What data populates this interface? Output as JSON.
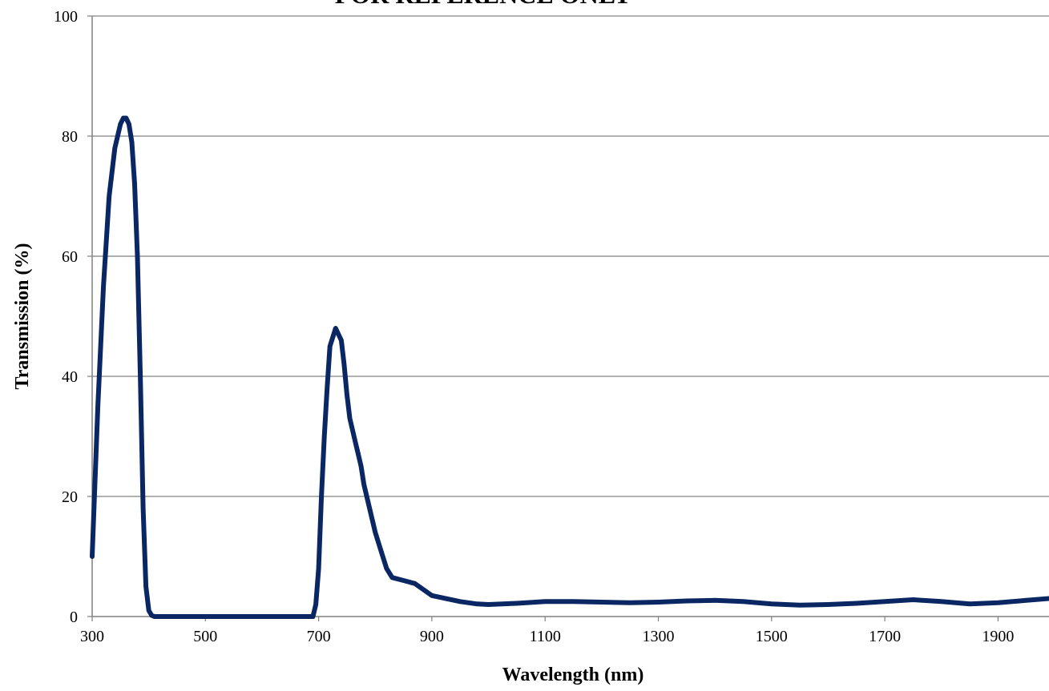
{
  "chart_data": {
    "type": "line",
    "title": "FOR REFERENCE ONLY",
    "xlabel": "Wavelength (nm)",
    "ylabel": "Transmission (%)",
    "xlim": [
      300,
      1990
    ],
    "ylim": [
      0,
      100
    ],
    "xticks": [
      300,
      500,
      700,
      900,
      1100,
      1300,
      1500,
      1700,
      1900
    ],
    "yticks": [
      0,
      20,
      40,
      60,
      80,
      100
    ],
    "grid": "horizontal",
    "legend": "none",
    "line_color": "#0a2763",
    "series": [
      {
        "x": [
          300,
          310,
          320,
          330,
          340,
          350,
          355,
          360,
          365,
          370,
          375,
          380,
          385,
          390,
          395,
          400,
          405,
          410,
          415,
          420,
          450,
          500,
          550,
          600,
          650,
          690,
          695,
          700,
          705,
          710,
          715,
          720,
          730,
          740,
          745,
          750,
          755,
          760,
          765,
          770,
          775,
          780,
          790,
          800,
          810,
          820,
          830,
          850,
          870,
          900,
          950,
          980,
          1000,
          1050,
          1100,
          1150,
          1200,
          1250,
          1300,
          1350,
          1400,
          1450,
          1500,
          1550,
          1600,
          1650,
          1700,
          1750,
          1800,
          1850,
          1900,
          1950,
          1990
        ],
        "y": [
          10,
          35,
          55,
          70,
          78,
          82,
          83,
          83,
          82,
          79,
          72,
          60,
          40,
          18,
          5,
          1,
          0.2,
          0,
          0,
          0,
          0,
          0,
          0,
          0,
          0,
          0,
          2,
          8,
          20,
          30,
          38,
          45,
          48,
          46,
          42,
          37,
          33,
          31,
          29,
          27,
          25,
          22,
          18,
          14,
          11,
          8,
          6.5,
          6,
          5.5,
          3.5,
          2.5,
          2.1,
          2.0,
          2.2,
          2.5,
          2.5,
          2.4,
          2.3,
          2.4,
          2.6,
          2.7,
          2.5,
          2.1,
          1.9,
          2.0,
          2.2,
          2.5,
          2.8,
          2.5,
          2.1,
          2.3,
          2.7,
          3.0
        ]
      }
    ]
  }
}
